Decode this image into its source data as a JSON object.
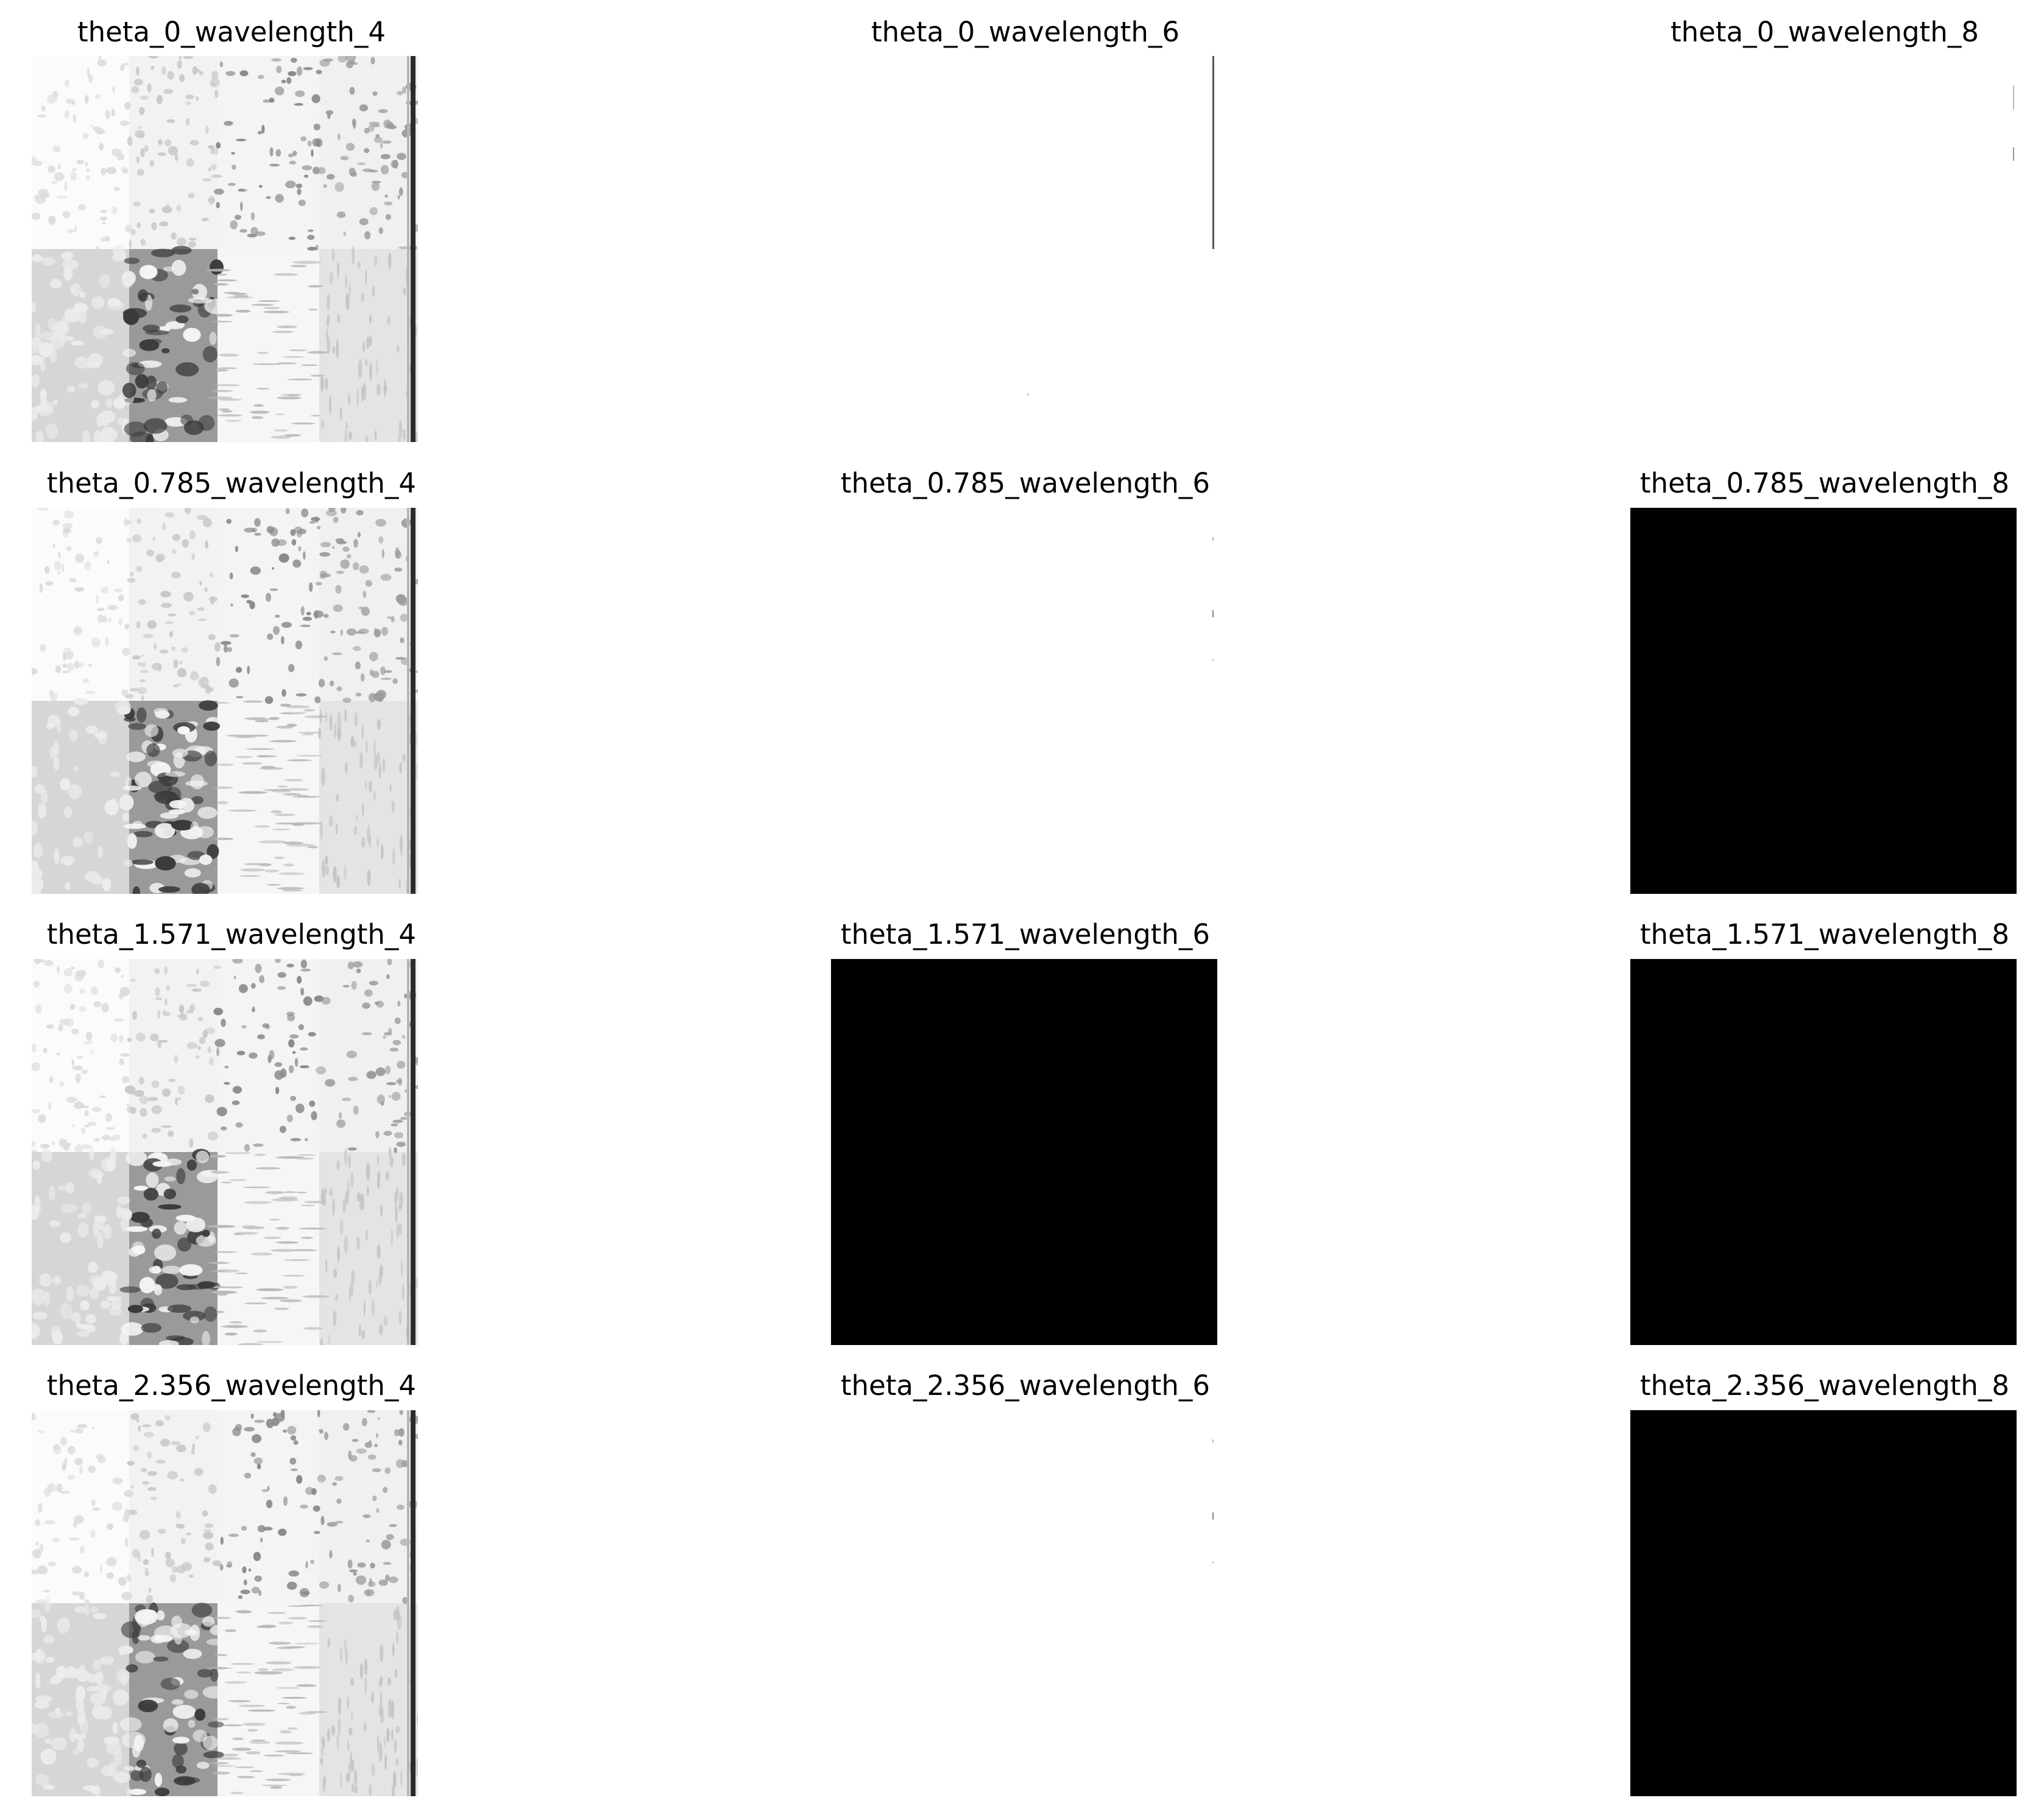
{
  "panels": [
    {
      "title": "theta_0_wavelength_4",
      "kind": "texture"
    },
    {
      "title": "theta_0_wavelength_6",
      "kind": "sparse-a"
    },
    {
      "title": "theta_0_wavelength_8",
      "kind": "sparse-b"
    },
    {
      "title": "theta_0.785_wavelength_4",
      "kind": "texture"
    },
    {
      "title": "theta_0.785_wavelength_6",
      "kind": "sparse-c"
    },
    {
      "title": "theta_0.785_wavelength_8",
      "kind": "black"
    },
    {
      "title": "theta_1.571_wavelength_4",
      "kind": "texture"
    },
    {
      "title": "theta_1.571_wavelength_6",
      "kind": "black"
    },
    {
      "title": "theta_1.571_wavelength_8",
      "kind": "black"
    },
    {
      "title": "theta_2.356_wavelength_4",
      "kind": "texture"
    },
    {
      "title": "theta_2.356_wavelength_6",
      "kind": "sparse-c"
    },
    {
      "title": "theta_2.356_wavelength_8",
      "kind": "black"
    }
  ]
}
